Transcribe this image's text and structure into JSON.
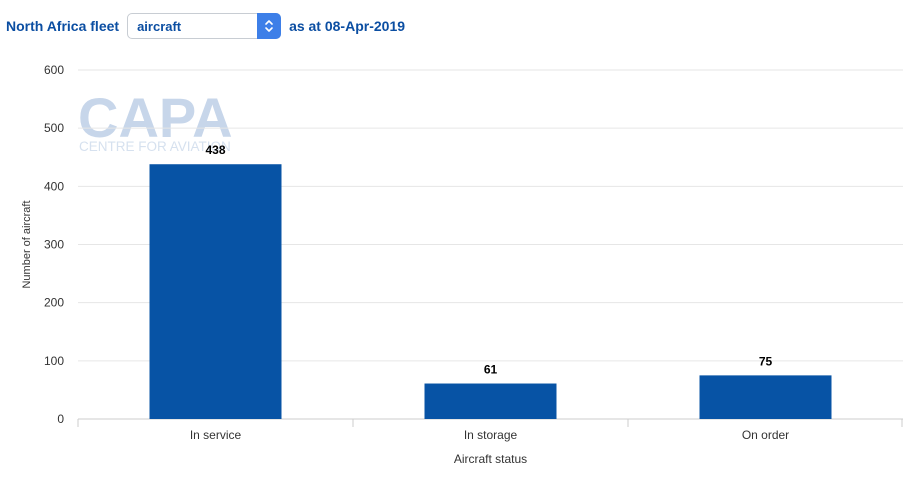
{
  "header": {
    "title": "North Africa fleet",
    "select_value": "aircraft",
    "date_suffix": "as at 08-Apr-2019"
  },
  "watermark": {
    "logo": "CAPA",
    "tagline": "CENTRE FOR AVIATION"
  },
  "colors": {
    "bar": "#0753a5",
    "header_text": "#0b4ea2",
    "stepper": "#3d7fe8",
    "grid": "#e6e6e6",
    "watermark": "#c7d6ea"
  },
  "chart_data": {
    "type": "bar",
    "categories": [
      "In service",
      "In storage",
      "On order"
    ],
    "values": [
      438,
      61,
      75
    ],
    "xlabel": "Aircraft status",
    "ylabel": "Number of aircraft",
    "ylim": [
      0,
      600
    ],
    "yticks": [
      0,
      100,
      200,
      300,
      400,
      500,
      600
    ],
    "grid": true,
    "legend": "none"
  }
}
